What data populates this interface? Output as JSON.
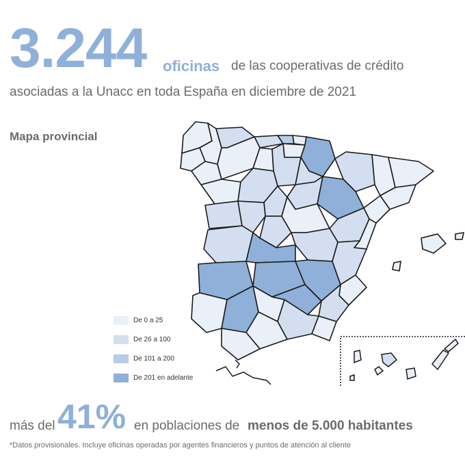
{
  "headline": {
    "number": "3.244",
    "unit": "oficinas",
    "rest": "de las cooperativas de crédito",
    "line2": "asociadas a la Unacc  en toda España en diciembre de 2021"
  },
  "section_title": "Mapa provincial",
  "legend": {
    "items": [
      {
        "label": "De 0 a 25",
        "color": "#eaf0f8"
      },
      {
        "label": "De 26 a 100",
        "color": "#d3dff0"
      },
      {
        "label": "De 101 a 200",
        "color": "#b8cbe7"
      },
      {
        "label": "De 201 en adelante",
        "color": "#8fb0d8"
      }
    ]
  },
  "bottom": {
    "prefix": "más del",
    "percent": "41%",
    "mid": "en poblaciones de",
    "bold": "menos de 5.000 habitantes"
  },
  "footnote": "*Datos provisionales. Incluye oficinas operadas por agentes financieros y puntos de atención al cliente"
}
